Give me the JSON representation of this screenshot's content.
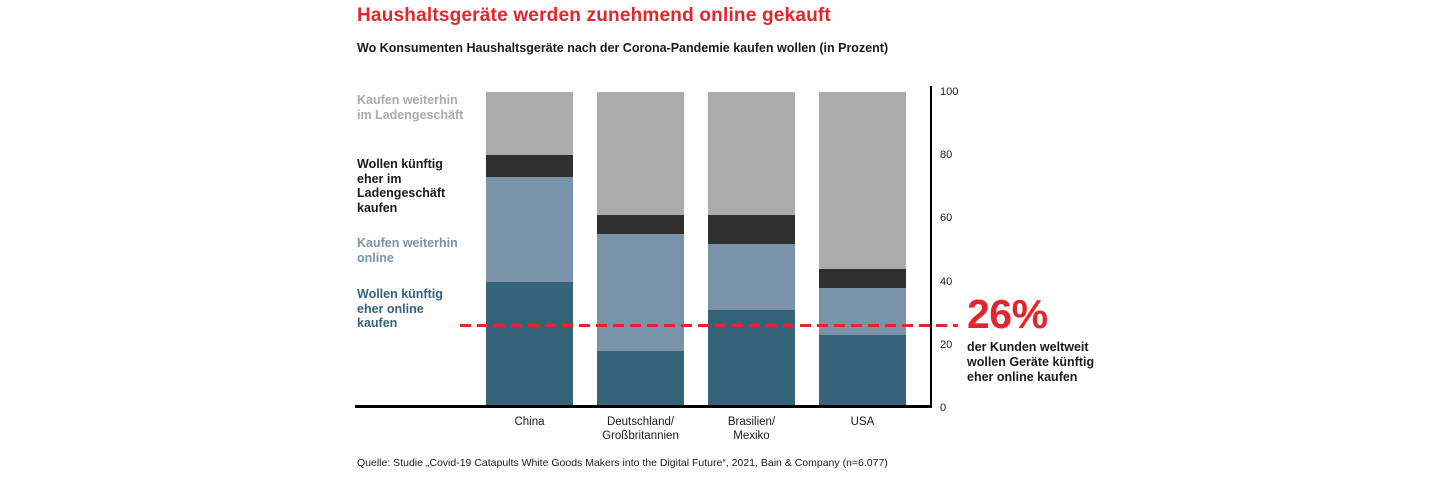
{
  "colors": {
    "accent_red": "#e5252c",
    "bar_gray": "#ababab",
    "bar_dark": "#2f2f2f",
    "bar_steel_blue": "#7b93a9",
    "bar_teal": "#35647a",
    "axis_black": "#000000"
  },
  "header": {
    "title_highlight": "Haushaltsgeräte",
    "title_rest": " werden zunehmend online gekauft",
    "subtitle": "Wo Konsumenten Haushaltsgeräte nach der Corona-Pandemie kaufen wollen (in Prozent)"
  },
  "chart_data": {
    "type": "bar",
    "stacked": true,
    "stack_order": "bottom-to-top",
    "categories": [
      "China",
      "Deutschland/\nGroßbritannien",
      "Brasilien/\nMexiko",
      "USA"
    ],
    "series": [
      {
        "name": "Wollen künftig eher online kaufen",
        "color": "#35647a",
        "values": [
          40,
          18,
          31,
          23
        ]
      },
      {
        "name": "Kaufen weiterhin online",
        "color": "#7b93a9",
        "values": [
          33,
          37,
          21,
          15
        ]
      },
      {
        "name": "Wollen künftig eher im Ladengeschäft kaufen",
        "color": "#2f2f2f",
        "values": [
          7,
          6,
          9,
          6
        ]
      },
      {
        "name": "Kaufen weiterhin im Ladengeschäft",
        "color": "#ababab",
        "values": [
          20,
          39,
          39,
          56
        ]
      }
    ],
    "ylim": [
      0,
      100
    ],
    "yticks": [
      0,
      20,
      40,
      60,
      80,
      100
    ],
    "grid": false,
    "legend_position": "left",
    "reference_line": {
      "value": 26,
      "color": "#e5252c",
      "style": "dashed"
    }
  },
  "legend": [
    {
      "label": "Kaufen weiterhin\nim Ladengeschäft",
      "color": "#ababab"
    },
    {
      "label": "Wollen künftig\neher im\nLadengeschäft\nkaufen",
      "color": "#1a1a1a"
    },
    {
      "label": "Kaufen weiterhin\nonline",
      "color": "#7b93a9"
    },
    {
      "label": "Wollen künftig\neher online\nkaufen",
      "color": "#35647a"
    }
  ],
  "annotation": {
    "value": "26%",
    "text": "der Kunden weltweit\nwollen Geräte künftig\neher online kaufen"
  },
  "source": "Quelle: Studie „Covid-19 Catapults White Goods Makers into the Digital Future“, 2021, Bain & Company (n=6.077)"
}
